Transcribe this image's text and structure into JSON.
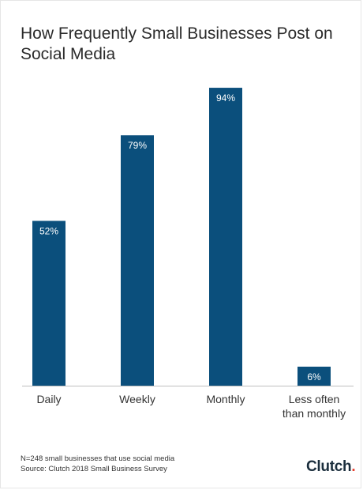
{
  "chart_data": {
    "type": "bar",
    "title_lines": [
      "How Frequently Small Businesses Post on",
      "Social Media"
    ],
    "categories": [
      [
        "Daily"
      ],
      [
        "Weekly"
      ],
      [
        "Monthly"
      ],
      [
        "Less often",
        "than monthly"
      ]
    ],
    "values": [
      52,
      79,
      94,
      6
    ],
    "value_labels": [
      "52%",
      "79%",
      "94%",
      "6%"
    ],
    "ylim": [
      0,
      100
    ],
    "bar_color": "#0b4f7c",
    "grid": false,
    "legend": "none"
  },
  "footnote": {
    "sample": "N=248 small businesses that use social media",
    "source": "Source: Clutch 2018 Small Business Survey"
  },
  "brand": {
    "name_main": "Clutch",
    "name_dot": "."
  },
  "colors": {
    "title": "#2b2b2b",
    "axis": "#bfbfbf",
    "category_text": "#333333",
    "bar_label": "#ffffff"
  }
}
